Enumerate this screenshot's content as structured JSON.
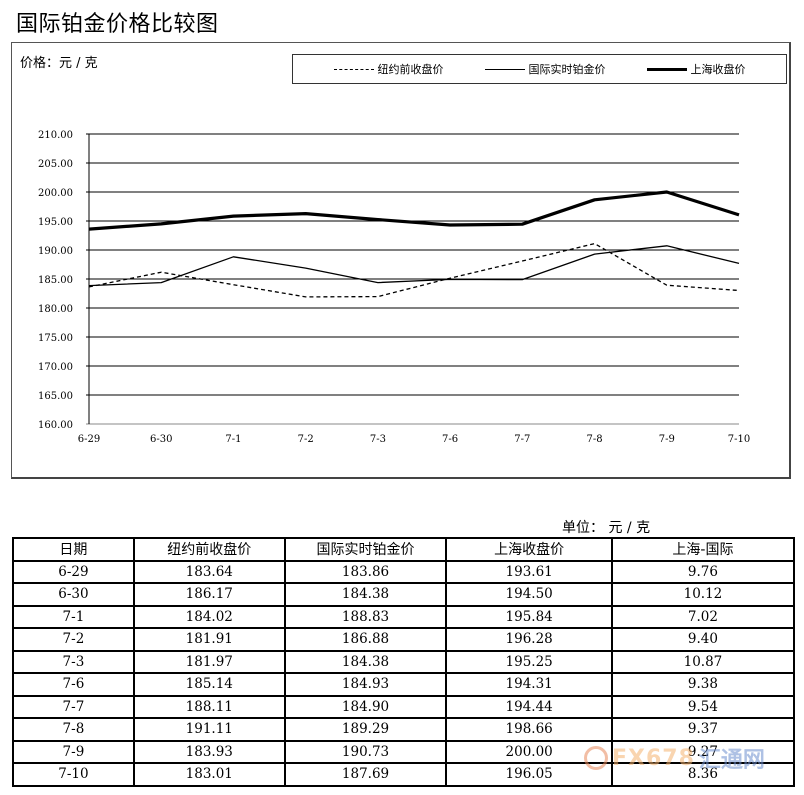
{
  "title": "国际铂金价格比较图",
  "chart": {
    "unit_label": "价格：元 / 克",
    "legend": [
      {
        "label": "纽约前收盘价",
        "style": "dashed"
      },
      {
        "label": "国际实时铂金价",
        "style": "thin"
      },
      {
        "label": "上海收盘价",
        "style": "thick"
      }
    ]
  },
  "chart_data": {
    "type": "line",
    "title": "国际铂金价格比较图",
    "xlabel": "",
    "ylabel": "价格：元 / 克",
    "ylim": [
      160,
      210
    ],
    "grid": true,
    "legend_position": "top-right",
    "categories": [
      "6-29",
      "6-30",
      "7-1",
      "7-2",
      "7-3",
      "7-6",
      "7-7",
      "7-8",
      "7-9",
      "7-10"
    ],
    "y_ticks": [
      "210.00",
      "205.00",
      "200.00",
      "195.00",
      "190.00",
      "185.00",
      "180.00",
      "175.00",
      "170.00",
      "165.00",
      "160.00"
    ],
    "series": [
      {
        "name": "纽约前收盘价",
        "line": "dashed",
        "values": [
          183.64,
          186.17,
          184.02,
          181.91,
          181.97,
          185.14,
          188.11,
          191.11,
          183.93,
          183.01
        ]
      },
      {
        "name": "国际实时铂金价",
        "line": "thin",
        "values": [
          183.86,
          184.38,
          188.83,
          186.88,
          184.38,
          184.93,
          184.9,
          189.29,
          190.73,
          187.69
        ]
      },
      {
        "name": "上海收盘价",
        "line": "thick",
        "values": [
          193.61,
          194.5,
          195.84,
          196.28,
          195.25,
          194.31,
          194.44,
          198.66,
          200.0,
          196.05
        ]
      }
    ]
  },
  "table": {
    "unit": "单位： 元 / 克",
    "headers": [
      "日期",
      "纽约前收盘价",
      "国际实时铂金价",
      "上海收盘价",
      "上海-国际"
    ],
    "rows": [
      [
        "6-29",
        "183.64",
        "183.86",
        "193.61",
        "9.76"
      ],
      [
        "6-30",
        "186.17",
        "184.38",
        "194.50",
        "10.12"
      ],
      [
        "7-1",
        "184.02",
        "188.83",
        "195.84",
        "7.02"
      ],
      [
        "7-2",
        "181.91",
        "186.88",
        "196.28",
        "9.40"
      ],
      [
        "7-3",
        "181.97",
        "184.38",
        "195.25",
        "10.87"
      ],
      [
        "7-6",
        "185.14",
        "184.93",
        "194.31",
        "9.38"
      ],
      [
        "7-7",
        "188.11",
        "184.90",
        "194.44",
        "9.54"
      ],
      [
        "7-8",
        "191.11",
        "189.29",
        "198.66",
        "9.37"
      ],
      [
        "7-9",
        "183.93",
        "190.73",
        "200.00",
        "9.27"
      ],
      [
        "7-10",
        "183.01",
        "187.69",
        "196.05",
        "8.36"
      ]
    ]
  },
  "watermark": {
    "brand": "FX678",
    "cn": "汇通网"
  }
}
